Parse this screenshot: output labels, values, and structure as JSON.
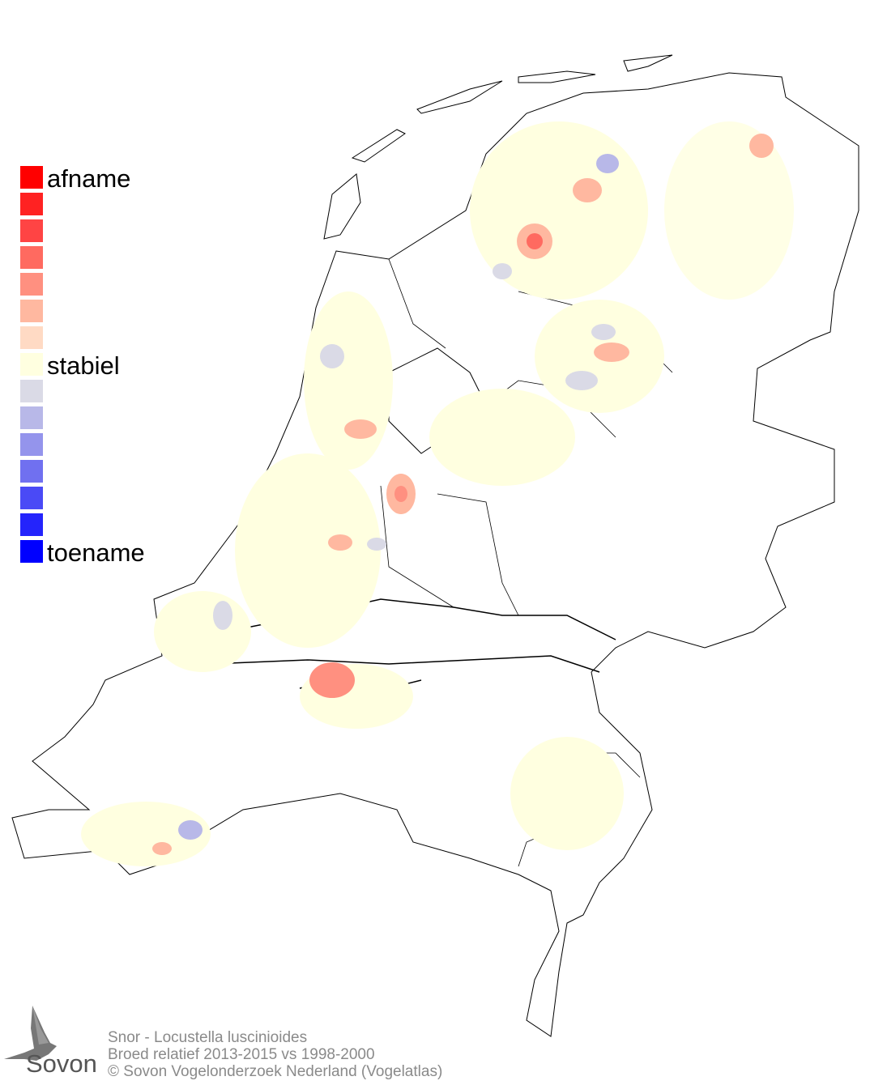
{
  "legend": {
    "labels": {
      "top": "afname",
      "middle": "stabiel",
      "bottom": "toename"
    },
    "colors": [
      "#ff0000",
      "#ff2222",
      "#ff4444",
      "#ff6a60",
      "#ff9080",
      "#ffb8a0",
      "#ffdac4",
      "#ffffe0",
      "#dadae6",
      "#b8b8e8",
      "#9494ec",
      "#7070f0",
      "#4a4af6",
      "#2424fc",
      "#0000ff"
    ]
  },
  "footer": {
    "species": "Snor - Locustella luscinioides",
    "period": "Broed relatief 2013-2015 vs 1998-2000",
    "copyright": "© Sovon Vogelonderzoek Nederland (Vogelatlas)"
  },
  "logo": {
    "text": "Sovon",
    "icon": "swallow-icon"
  }
}
